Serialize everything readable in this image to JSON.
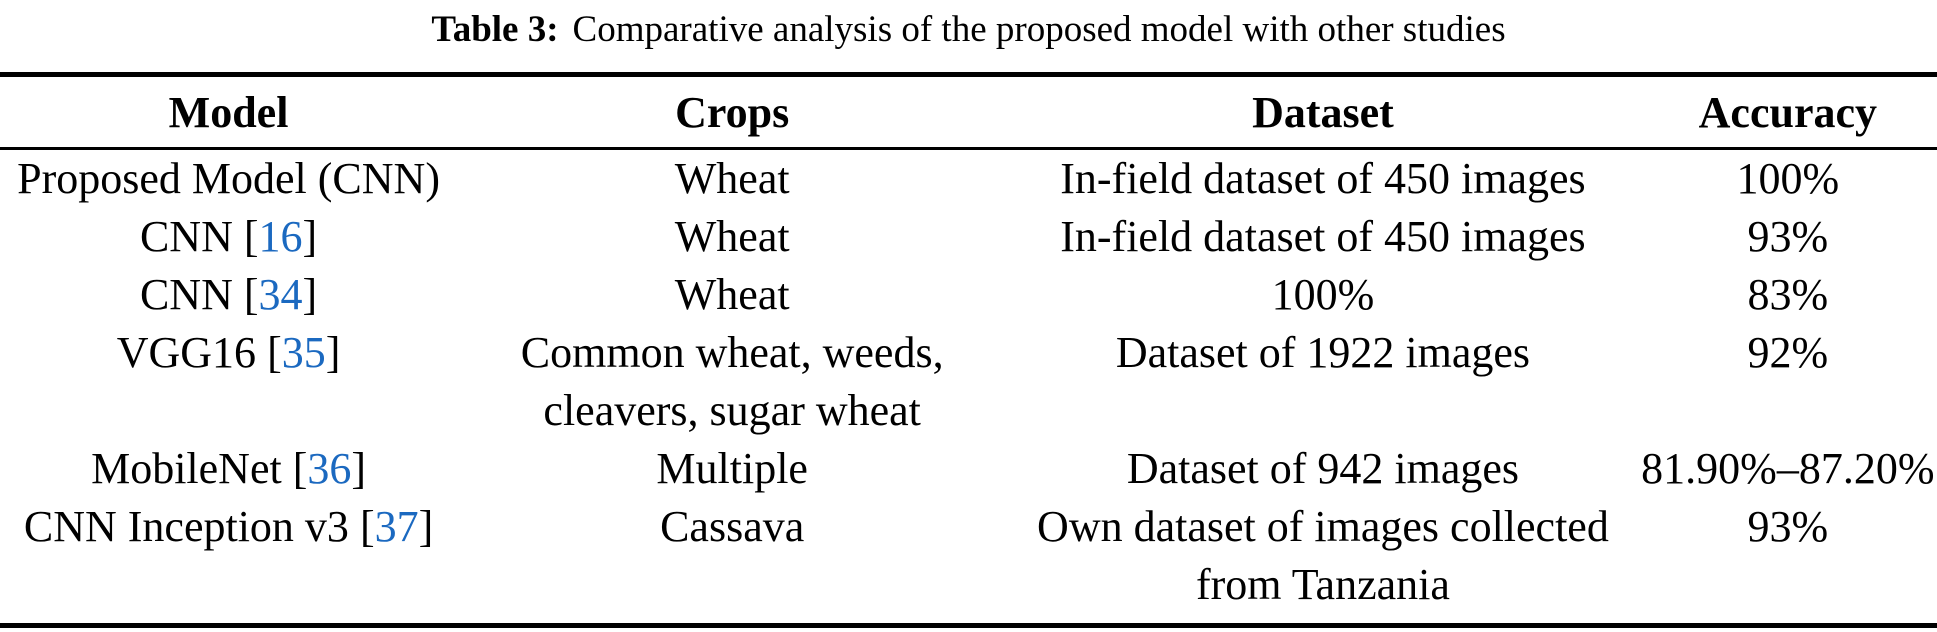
{
  "caption": {
    "label": "Table 3:",
    "text": "Comparative analysis of the proposed model with other studies"
  },
  "colors": {
    "citation_blue": "#1b69c0",
    "text": "#000000",
    "rule": "#000000",
    "background": "#ffffff"
  },
  "table": {
    "headers": [
      "Model",
      "Crops",
      "Dataset",
      "Accuracy"
    ],
    "rows": [
      {
        "model": "Proposed Model (CNN)",
        "ref": null,
        "crops": "Wheat",
        "dataset": "In-field dataset of 450 images",
        "accuracy": "100%"
      },
      {
        "model": "CNN",
        "ref": "16",
        "crops": "Wheat",
        "dataset": "In-field dataset of 450 images",
        "accuracy": "93%"
      },
      {
        "model": "CNN",
        "ref": "34",
        "crops": "Wheat",
        "dataset": "100%",
        "accuracy": "83%"
      },
      {
        "model": "VGG16",
        "ref": "35",
        "crops": "Common wheat, weeds,\ncleavers, sugar wheat",
        "dataset": "Dataset of 1922 images",
        "accuracy": "92%"
      },
      {
        "model": "MobileNet",
        "ref": "36",
        "crops": "Multiple",
        "dataset": "Dataset of 942 images",
        "accuracy": "81.90%–87.20%"
      },
      {
        "model": "CNN Inception v3",
        "ref": "37",
        "crops": "Cassava",
        "dataset": "Own dataset of images collected\nfrom Tanzania",
        "accuracy": "93%"
      }
    ]
  }
}
